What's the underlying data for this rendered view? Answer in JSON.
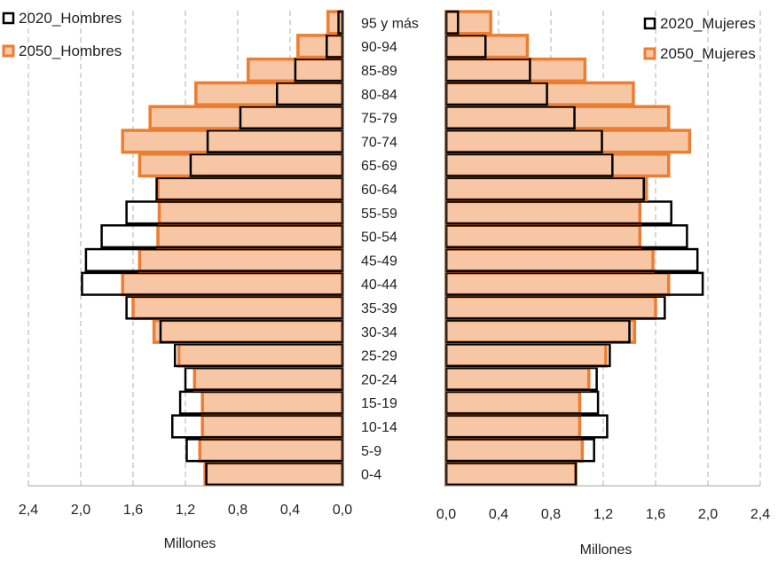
{
  "chart_data": {
    "type": "bar",
    "subtype": "population-pyramid",
    "categories": [
      "0-4",
      "5-9",
      "10-14",
      "15-19",
      "20-24",
      "25-29",
      "30-34",
      "35-39",
      "40-44",
      "45-49",
      "50-54",
      "55-59",
      "60-64",
      "65-69",
      "70-74",
      "75-79",
      "80-84",
      "85-89",
      "90-94",
      "95 y más"
    ],
    "xlabel": "Millones",
    "xlim": [
      0,
      2.4
    ],
    "ticks": [
      "0,0",
      "0,4",
      "0,8",
      "1,2",
      "1,6",
      "2,0",
      "2,4"
    ],
    "grid": true,
    "left_panel": {
      "series": [
        {
          "name": "2020_Hombres",
          "values": [
            1.04,
            1.19,
            1.3,
            1.24,
            1.2,
            1.28,
            1.39,
            1.65,
            1.99,
            1.96,
            1.84,
            1.65,
            1.42,
            1.16,
            1.03,
            0.78,
            0.5,
            0.36,
            0.12,
            0.03
          ]
        },
        {
          "name": "2050_Hombres",
          "values": [
            1.05,
            1.09,
            1.07,
            1.07,
            1.13,
            1.25,
            1.44,
            1.6,
            1.68,
            1.55,
            1.41,
            1.4,
            1.41,
            1.55,
            1.68,
            1.47,
            1.12,
            0.72,
            0.34,
            0.11
          ]
        }
      ],
      "legend": [
        "2020_Hombres",
        "2050_Hombres"
      ]
    },
    "right_panel": {
      "series": [
        {
          "name": "2020_Mujeres",
          "values": [
            0.99,
            1.13,
            1.23,
            1.16,
            1.15,
            1.25,
            1.4,
            1.67,
            1.96,
            1.92,
            1.84,
            1.72,
            1.51,
            1.27,
            1.19,
            0.98,
            0.77,
            0.64,
            0.3,
            0.09
          ]
        },
        {
          "name": "2050_Mujeres",
          "values": [
            0.99,
            1.04,
            1.02,
            1.02,
            1.09,
            1.22,
            1.44,
            1.6,
            1.7,
            1.58,
            1.48,
            1.48,
            1.53,
            1.7,
            1.86,
            1.7,
            1.43,
            1.06,
            0.62,
            0.34
          ]
        }
      ],
      "legend": [
        "2020_Mujeres",
        "2050_Mujeres"
      ]
    }
  },
  "colors": {
    "bar2050_fill": "#f6c6a5",
    "bar2050_stroke": "#ed7d31",
    "bar2020_stroke": "#000000",
    "grid": "#b0b0b0",
    "axis": "#a6a6a6"
  }
}
